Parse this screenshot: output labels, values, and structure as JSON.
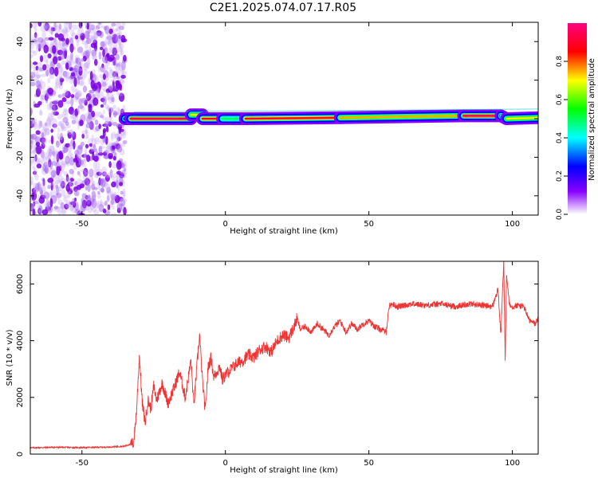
{
  "title": "C2E1.2025.074.07.17.R05",
  "chart_data": [
    {
      "type": "heatmap",
      "xlabel": "Height of straight line (km)",
      "ylabel": "Frequency (Hz)",
      "xlim": [
        -68,
        109
      ],
      "ylim": [
        -50,
        50
      ],
      "xticks": [
        -50,
        0,
        50,
        100
      ],
      "yticks": [
        -40,
        -20,
        0,
        20,
        40
      ],
      "grid": false,
      "colorbar": {
        "label": "Normalized spectral amplitude",
        "range": [
          0,
          1
        ],
        "ticks": [
          "0.0",
          "0.2",
          "0.4",
          "0.6",
          "0.8"
        ],
        "colors": [
          "#ffffff",
          "#8800ff",
          "#0000ff",
          "#00ffff",
          "#00ff00",
          "#ffff00",
          "#ff0000",
          "#ff0080"
        ]
      },
      "noise_region": {
        "x": [
          -68,
          -35
        ],
        "y": [
          -50,
          50
        ],
        "amplitude": 0.15
      },
      "line_segments": [
        {
          "x0": -35,
          "x1": -33,
          "y0": 0,
          "y1": 0,
          "amplitude": 0.3
        },
        {
          "x0": -33,
          "x1": -12,
          "y0": 0,
          "y1": 0,
          "amplitude": 0.95
        },
        {
          "x0": -12,
          "x1": -8,
          "y0": 2,
          "y1": 2,
          "amplitude": 0.7
        },
        {
          "x0": -8,
          "x1": -1,
          "y0": 0,
          "y1": 0,
          "amplitude": 0.9
        },
        {
          "x0": -1,
          "x1": 7,
          "y0": 0,
          "y1": 0,
          "amplitude": 0.5
        },
        {
          "x0": 7,
          "x1": 40,
          "y0": 0,
          "y1": 0.5,
          "amplitude": 0.9
        },
        {
          "x0": 40,
          "x1": 83,
          "y0": 0.5,
          "y1": 1.5,
          "amplitude": 0.75
        },
        {
          "x0": 83,
          "x1": 96,
          "y0": 1.5,
          "y1": 1.5,
          "amplitude": 0.95
        },
        {
          "x0": 96,
          "x1": 98,
          "y0": 1.5,
          "y1": 0,
          "amplitude": 0.4
        },
        {
          "x0": 98,
          "x1": 109,
          "y0": 0,
          "y1": 0.5,
          "amplitude": 0.7
        }
      ]
    },
    {
      "type": "line",
      "xlabel": "Height of straight line (km)",
      "ylabel": "SNR (10 * v/v)",
      "xlim": [
        -68,
        109
      ],
      "ylim": [
        0,
        6800
      ],
      "xticks": [
        -50,
        0,
        50,
        100
      ],
      "yticks": [
        0,
        2000,
        4000,
        6000
      ],
      "grid": false,
      "series": [
        {
          "color": "#ee3333",
          "x": [
            -68,
            -60,
            -50,
            -40,
            -35,
            -32,
            -31,
            -30,
            -29,
            -28,
            -27,
            -26,
            -25,
            -24,
            -22,
            -20,
            -18,
            -16,
            -14,
            -12,
            -11,
            -10,
            -9,
            -8,
            -7,
            -6,
            -5,
            -4,
            -3,
            -2,
            -1,
            0,
            2,
            4,
            6,
            8,
            10,
            12,
            14,
            16,
            18,
            20,
            22,
            24,
            25,
            26,
            28,
            30,
            32,
            34,
            36,
            38,
            40,
            42,
            44,
            46,
            48,
            50,
            52,
            54,
            56,
            57,
            58,
            60,
            65,
            70,
            75,
            80,
            85,
            90,
            93,
            95,
            96,
            97,
            97.5,
            98,
            99,
            100,
            102,
            104,
            106,
            108,
            109
          ],
          "y": [
            220,
            240,
            230,
            250,
            280,
            400,
            1500,
            3500,
            1800,
            1100,
            1900,
            1600,
            2400,
            1900,
            2500,
            1800,
            2300,
            2900,
            2000,
            3300,
            1700,
            3000,
            4200,
            2600,
            1500,
            3100,
            3400,
            2700,
            2900,
            3100,
            2600,
            2800,
            3000,
            3200,
            3300,
            3500,
            3400,
            3700,
            3800,
            3600,
            4000,
            4200,
            4100,
            4500,
            4800,
            4400,
            4500,
            4300,
            4600,
            4400,
            4200,
            4500,
            4700,
            4300,
            4600,
            4400,
            4600,
            4700,
            4500,
            4400,
            4300,
            5200,
            5300,
            5200,
            5300,
            5250,
            5300,
            5200,
            5300,
            5250,
            5200,
            5800,
            4200,
            6800,
            3300,
            6300,
            5300,
            5200,
            5250,
            5200,
            4700,
            4600,
            4800
          ]
        }
      ]
    }
  ]
}
